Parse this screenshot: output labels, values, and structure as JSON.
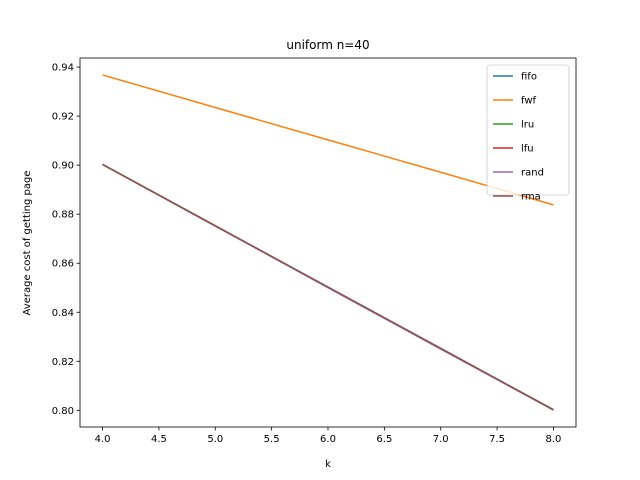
{
  "chart_data": {
    "type": "line",
    "title": "uniform n=40",
    "xlabel": "k",
    "ylabel": "Average cost of getting page",
    "xlim": [
      3.8,
      8.2
    ],
    "ylim": [
      0.7932,
      0.9437
    ],
    "xticks": [
      4.0,
      4.5,
      5.0,
      5.5,
      6.0,
      6.5,
      7.0,
      7.5,
      8.0
    ],
    "xtick_labels": [
      "4.0",
      "4.5",
      "5.0",
      "5.5",
      "6.0",
      "6.5",
      "7.0",
      "7.5",
      "8.0"
    ],
    "yticks": [
      0.8,
      0.82,
      0.84,
      0.86,
      0.88,
      0.9,
      0.92,
      0.94
    ],
    "ytick_labels": [
      "0.80",
      "0.82",
      "0.84",
      "0.86",
      "0.88",
      "0.90",
      "0.92",
      "0.94"
    ],
    "grid": false,
    "legend_position": "top-right",
    "x": [
      4,
      5,
      6,
      7,
      8
    ],
    "series": [
      {
        "name": "fifo",
        "color": "#1f77b4",
        "values": [
          0.9003,
          0.8752,
          0.8502,
          0.8252,
          0.8002
        ]
      },
      {
        "name": "fwf",
        "color": "#ff7f0e",
        "values": [
          0.9368,
          0.9235,
          0.9103,
          0.8971,
          0.8838
        ]
      },
      {
        "name": "lru",
        "color": "#2ca02c",
        "values": [
          0.9003,
          0.8752,
          0.8502,
          0.8252,
          0.8002
        ]
      },
      {
        "name": "lfu",
        "color": "#d62728",
        "values": [
          0.9003,
          0.8752,
          0.8502,
          0.8252,
          0.8002
        ]
      },
      {
        "name": "rand",
        "color": "#9467bd",
        "values": [
          0.9003,
          0.8752,
          0.85,
          0.825,
          0.8001
        ]
      },
      {
        "name": "rma",
        "color": "#8c564b",
        "values": [
          0.9003,
          0.8753,
          0.8503,
          0.8253,
          0.8002
        ]
      }
    ]
  }
}
